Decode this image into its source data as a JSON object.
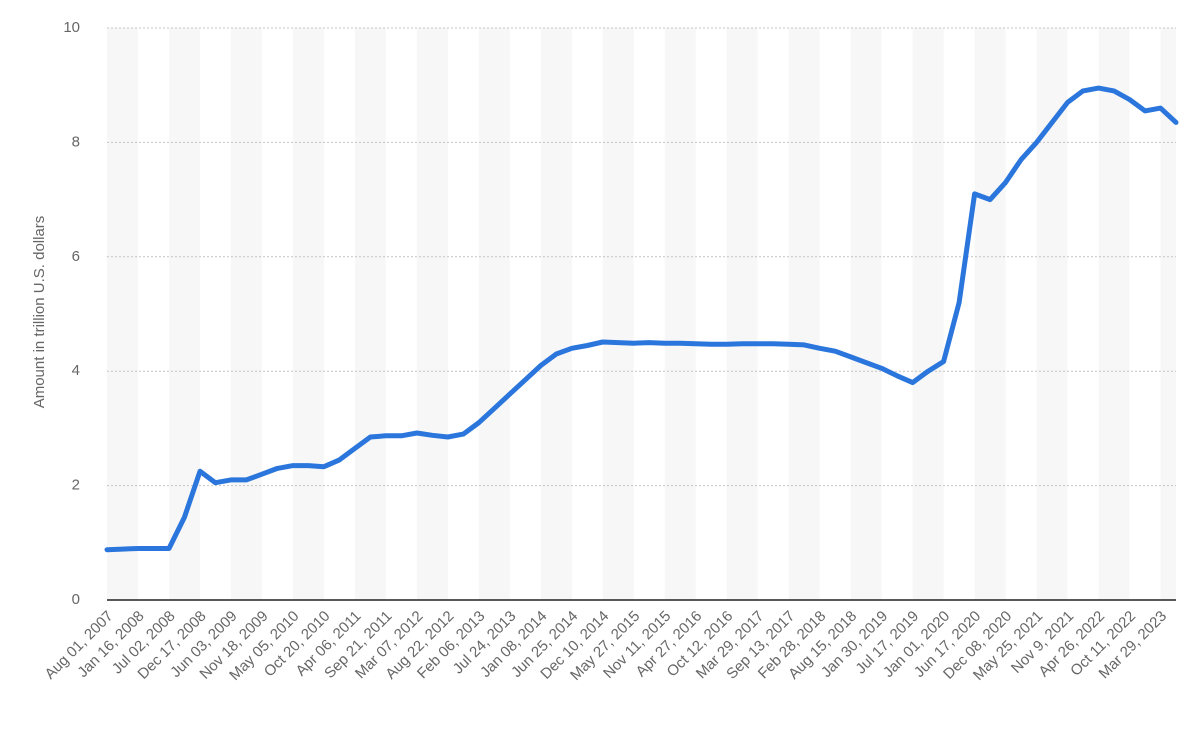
{
  "chart_data": {
    "type": "line",
    "y_label": "Amount in trillion U.S. dollars",
    "categories": [
      "Aug 01, 2007",
      null,
      "Jan 16, 2008",
      null,
      "Jul 02, 2008",
      null,
      "Dec 17, 2008",
      null,
      "Jun 03, 2009",
      null,
      "Nov 18, 2009",
      null,
      "May 05, 2010",
      null,
      "Oct 20, 2010",
      null,
      "Apr 06, 2011",
      null,
      "Sep 21, 2011",
      null,
      "Mar 07, 2012",
      null,
      "Aug 22, 2012",
      null,
      "Feb 06, 2013",
      null,
      "Jul 24, 2013",
      null,
      "Jan 08, 2014",
      null,
      "Jun 25, 2014",
      null,
      "Dec 10, 2014",
      null,
      "May 27, 2015",
      null,
      "Nov 11, 2015",
      null,
      "Apr 27, 2016",
      null,
      "Oct 12, 2016",
      null,
      "Mar 29, 2017",
      null,
      "Sep 13, 2017",
      null,
      "Feb 28, 2018",
      null,
      "Aug 15, 2018",
      null,
      "Jan 30, 2019",
      null,
      "Jul 17, 2019",
      null,
      "Jan 01, 2020",
      null,
      "Jun 17, 2020",
      null,
      "Dec 08, 2020",
      null,
      "May 25, 2021",
      null,
      "Nov 9, 2021",
      null,
      "Apr 26, 2022",
      null,
      "Oct 11, 2022",
      null,
      "Mar 29, 2023",
      null
    ],
    "values": [
      0.88,
      0.89,
      0.9,
      0.9,
      0.9,
      1.45,
      2.25,
      2.05,
      2.1,
      2.1,
      2.2,
      2.3,
      2.35,
      2.35,
      2.33,
      2.45,
      2.65,
      2.85,
      2.87,
      2.87,
      2.92,
      2.88,
      2.85,
      2.9,
      3.1,
      3.35,
      3.6,
      3.85,
      4.1,
      4.3,
      4.4,
      4.45,
      4.51,
      4.5,
      4.49,
      4.5,
      4.49,
      4.49,
      4.48,
      4.47,
      4.47,
      4.48,
      4.48,
      4.48,
      4.47,
      4.46,
      4.4,
      4.35,
      4.25,
      4.15,
      4.05,
      3.92,
      3.8,
      4.0,
      4.17,
      5.2,
      7.1,
      7.0,
      7.3,
      7.7,
      8.0,
      8.35,
      8.7,
      8.9,
      8.95,
      8.9,
      8.75,
      8.55,
      8.6,
      8.35
    ],
    "color": "#2b76dc",
    "ylim": [
      0,
      10
    ],
    "yticks": [
      0,
      2,
      4,
      6,
      8,
      10
    ],
    "grid": true
  }
}
